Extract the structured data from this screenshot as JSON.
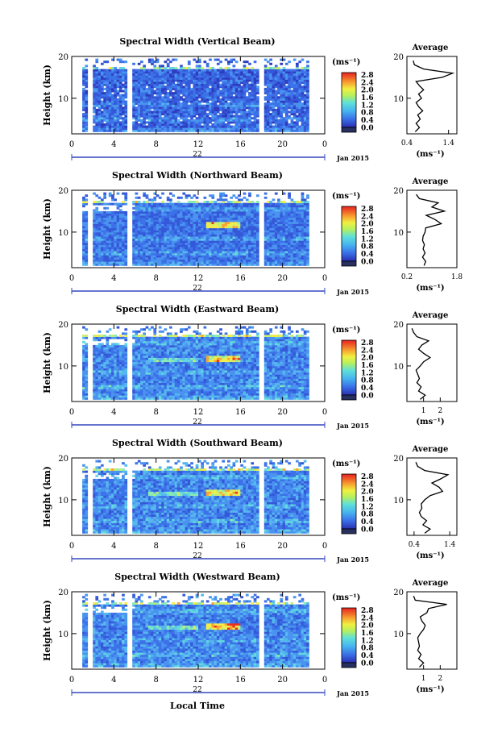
{
  "figure": {
    "height_label": "Height (km)",
    "local_time_label": "Local Time",
    "day_label": "22",
    "month_label": "Jan 2015",
    "average_title": "Average",
    "unit": "(ms⁻¹)",
    "cbar_ticks": [
      "2.8",
      "2.4",
      "2.0",
      "1.6",
      "1.2",
      "0.8",
      "0.4",
      "0.0"
    ]
  },
  "chart_data": [
    {
      "type": "heatmap",
      "title": "Spectral Width (Vertical Beam)",
      "xlabel": "",
      "ylabel": "Height (km)",
      "xlim": [
        0,
        24
      ],
      "ylim": [
        1.5,
        20
      ],
      "x_ticks": [
        "0",
        "4",
        "8",
        "12",
        "16",
        "20",
        "0"
      ],
      "y_ticks": [
        "10",
        "20"
      ],
      "colorbar": {
        "unit": "(ms⁻¹)",
        "range": [
          0,
          3.0
        ],
        "ticks": [
          "2.8",
          "2.4",
          "2.0",
          "1.6",
          "1.2",
          "0.8",
          "0.4",
          "0.0"
        ]
      },
      "profile": {
        "title": "Average",
        "xlabel": "(ms⁻¹)",
        "xlim": [
          0.4,
          1.6
        ],
        "x_ticks": [
          "0.4",
          "1.4"
        ],
        "y_ticks": [
          "10",
          "20"
        ],
        "heights": [
          2,
          3,
          4,
          5,
          6,
          7,
          8,
          9,
          10,
          11,
          12,
          13,
          14,
          15,
          16,
          17,
          18,
          19
        ],
        "values": [
          0.6,
          0.7,
          0.62,
          0.72,
          0.66,
          0.78,
          0.68,
          0.62,
          0.75,
          0.68,
          0.8,
          0.7,
          0.62,
          1.25,
          1.5,
          0.8,
          0.58,
          0.55
        ]
      }
    },
    {
      "type": "heatmap",
      "title": "Spectral Width (Northward Beam)",
      "xlabel": "",
      "ylabel": "Height (km)",
      "xlim": [
        0,
        24
      ],
      "ylim": [
        1.5,
        20
      ],
      "x_ticks": [
        "0",
        "4",
        "8",
        "12",
        "16",
        "20",
        "0"
      ],
      "y_ticks": [
        "10",
        "20"
      ],
      "colorbar": {
        "unit": "(ms⁻¹)",
        "range": [
          0,
          3.0
        ],
        "ticks": [
          "2.8",
          "2.4",
          "2.0",
          "1.6",
          "1.2",
          "0.8",
          "0.4",
          "0.0"
        ]
      },
      "profile": {
        "title": "Average",
        "xlabel": "(ms⁻¹)",
        "xlim": [
          0.2,
          1.8
        ],
        "x_ticks": [
          "0.2",
          "1.8"
        ],
        "y_ticks": [
          "10",
          "20"
        ],
        "heights": [
          2,
          3,
          4,
          5,
          6,
          7,
          8,
          9,
          10,
          11,
          12,
          13,
          14,
          15,
          16,
          17,
          18,
          19
        ],
        "values": [
          0.75,
          0.8,
          0.7,
          0.78,
          0.72,
          0.76,
          0.7,
          0.72,
          0.78,
          0.8,
          1.3,
          1.1,
          0.82,
          1.4,
          1.0,
          1.2,
          0.6,
          0.5
        ]
      }
    },
    {
      "type": "heatmap",
      "title": "Spectral Width (Eastward Beam)",
      "xlabel": "",
      "ylabel": "Height (km)",
      "xlim": [
        0,
        24
      ],
      "ylim": [
        1.5,
        20
      ],
      "x_ticks": [
        "0",
        "4",
        "8",
        "12",
        "16",
        "20",
        "0"
      ],
      "y_ticks": [
        "10",
        "20"
      ],
      "colorbar": {
        "unit": "(ms⁻¹)",
        "range": [
          0,
          3.0
        ],
        "ticks": [
          "2.8",
          "2.4",
          "2.0",
          "1.6",
          "1.2",
          "0.8",
          "0.4",
          "0.0"
        ]
      },
      "profile": {
        "title": "Average",
        "xlabel": "(ms⁻¹)",
        "xlim": [
          0,
          3
        ],
        "x_ticks": [
          "1",
          "2"
        ],
        "y_ticks": [
          "10",
          "20"
        ],
        "heights": [
          2,
          3,
          4,
          5,
          6,
          7,
          8,
          9,
          10,
          11,
          12,
          13,
          14,
          15,
          16,
          17,
          18,
          19
        ],
        "values": [
          0.8,
          1.1,
          0.7,
          0.85,
          0.6,
          0.75,
          0.65,
          0.55,
          0.8,
          1.0,
          1.4,
          1.0,
          0.7,
          0.9,
          1.3,
          0.6,
          0.4,
          0.3
        ]
      }
    },
    {
      "type": "heatmap",
      "title": "Spectral Width (Southward Beam)",
      "xlabel": "",
      "ylabel": "Height (km)",
      "xlim": [
        0,
        24
      ],
      "ylim": [
        1.5,
        20
      ],
      "x_ticks": [
        "0",
        "4",
        "8",
        "12",
        "16",
        "20",
        "0"
      ],
      "y_ticks": [
        "10",
        "20"
      ],
      "colorbar": {
        "unit": "(ms⁻¹)",
        "range": [
          0,
          3.0
        ],
        "ticks": [
          "2.8",
          "2.4",
          "2.0",
          "1.6",
          "1.2",
          "0.8",
          "0.4",
          "0.0"
        ]
      },
      "profile": {
        "title": "Average",
        "xlabel": "(ms⁻¹)",
        "xlim": [
          0.2,
          1.6
        ],
        "x_ticks": [
          "0.4",
          "1.4"
        ],
        "y_ticks": [
          "10",
          "20"
        ],
        "heights": [
          2,
          3,
          4,
          5,
          6,
          7,
          8,
          9,
          10,
          11,
          12,
          13,
          14,
          15,
          16,
          17,
          18,
          19
        ],
        "values": [
          0.7,
          0.85,
          0.65,
          0.75,
          0.6,
          0.55,
          0.62,
          0.6,
          0.7,
          0.85,
          1.2,
          1.1,
          0.9,
          1.15,
          1.35,
          0.7,
          0.5,
          0.45
        ]
      }
    },
    {
      "type": "heatmap",
      "title": "Spectral Width (Westward Beam)",
      "xlabel": "Local Time",
      "ylabel": "Height (km)",
      "xlim": [
        0,
        24
      ],
      "ylim": [
        1.5,
        20
      ],
      "x_ticks": [
        "0",
        "4",
        "8",
        "12",
        "16",
        "20",
        "0"
      ],
      "y_ticks": [
        "10",
        "20"
      ],
      "colorbar": {
        "unit": "(ms⁻¹)",
        "range": [
          0,
          3.0
        ],
        "ticks": [
          "2.8",
          "2.4",
          "2.0",
          "1.6",
          "1.2",
          "0.8",
          "0.4",
          "0.0"
        ]
      },
      "profile": {
        "title": "Average",
        "xlabel": "(ms⁻¹)",
        "xlim": [
          0,
          3
        ],
        "x_ticks": [
          "1",
          "2"
        ],
        "y_ticks": [
          "10",
          "20"
        ],
        "heights": [
          2,
          3,
          4,
          5,
          6,
          7,
          8,
          9,
          10,
          11,
          12,
          13,
          14,
          15,
          16,
          17,
          18,
          19
        ],
        "values": [
          0.75,
          1.0,
          0.7,
          0.85,
          0.65,
          0.75,
          0.7,
          0.65,
          0.8,
          1.0,
          1.1,
          0.9,
          0.8,
          1.2,
          1.3,
          2.4,
          0.5,
          0.4
        ]
      }
    }
  ]
}
